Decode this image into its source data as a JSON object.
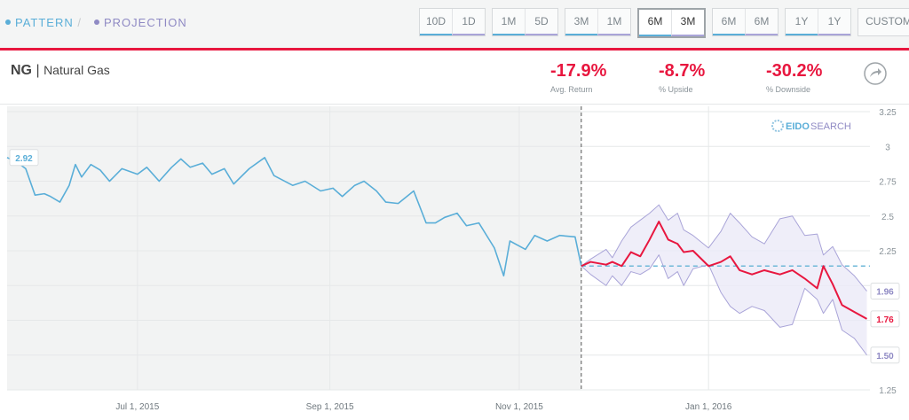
{
  "tabs": {
    "separator": "/"
  },
  "range_buttons": [
    [
      "10D",
      "1D"
    ],
    [
      "1M",
      "5D"
    ],
    [
      "3M",
      "1M"
    ],
    [
      "6M",
      "3M"
    ],
    [
      "6M",
      "6M"
    ],
    [
      "1Y",
      "1Y"
    ]
  ],
  "custom_button": "CUSTOM",
  "symbol": "NG",
  "symbol_separator": "|",
  "name": "Natural Gas",
  "stats": [
    {
      "value": "-17.9%",
      "label": "Avg. Return"
    },
    {
      "value": "-8.7%",
      "label": "% Upside"
    },
    {
      "value": "-30.2%",
      "label": "% Downside"
    }
  ],
  "logo": {
    "first": "EIDO",
    "second": "SEARCH"
  },
  "chart_data": {
    "type": "line",
    "xlim": [
      "2015-05-20",
      "2016-02-22"
    ],
    "xticks": [
      {
        "value": "2015-07-01",
        "label": "Jul 1, 2015"
      },
      {
        "value": "2015-09-01",
        "label": "Sep 1, 2015"
      },
      {
        "value": "2015-11-01",
        "label": "Nov 1, 2015"
      },
      {
        "value": "2016-01-01",
        "label": "Jan 1, 2016"
      }
    ],
    "ylim": [
      1.25,
      3.25
    ],
    "yticks": [
      1.25,
      1.5,
      1.75,
      2,
      2.25,
      2.5,
      2.75,
      3,
      3.25
    ],
    "grid": true,
    "series": [
      {
        "name": "PATTERN",
        "color": "#5aaed8",
        "x": [
          "2015-05-20",
          "2015-05-23",
          "2015-05-26",
          "2015-05-29",
          "2015-06-01",
          "2015-06-03",
          "2015-06-06",
          "2015-06-09",
          "2015-06-11",
          "2015-06-13",
          "2015-06-16",
          "2015-06-19",
          "2015-06-22",
          "2015-06-26",
          "2015-07-01",
          "2015-07-04",
          "2015-07-08",
          "2015-07-12",
          "2015-07-15",
          "2015-07-18",
          "2015-07-22",
          "2015-07-25",
          "2015-07-29",
          "2015-08-01",
          "2015-08-06",
          "2015-08-11",
          "2015-08-14",
          "2015-08-20",
          "2015-08-24",
          "2015-08-29",
          "2015-09-02",
          "2015-09-05",
          "2015-09-09",
          "2015-09-12",
          "2015-09-16",
          "2015-09-19",
          "2015-09-23",
          "2015-09-28",
          "2015-10-02",
          "2015-10-05",
          "2015-10-08",
          "2015-10-12",
          "2015-10-15",
          "2015-10-19",
          "2015-10-24",
          "2015-10-27",
          "2015-10-29",
          "2015-11-03",
          "2015-11-06",
          "2015-11-10",
          "2015-11-14",
          "2015-11-19",
          "2015-11-21"
        ],
        "values": [
          2.92,
          2.89,
          2.84,
          2.65,
          2.66,
          2.64,
          2.6,
          2.72,
          2.87,
          2.78,
          2.87,
          2.83,
          2.75,
          2.84,
          2.8,
          2.85,
          2.75,
          2.85,
          2.91,
          2.85,
          2.88,
          2.8,
          2.84,
          2.73,
          2.84,
          2.92,
          2.79,
          2.72,
          2.75,
          2.68,
          2.7,
          2.64,
          2.72,
          2.75,
          2.68,
          2.6,
          2.59,
          2.68,
          2.45,
          2.45,
          2.49,
          2.52,
          2.43,
          2.45,
          2.27,
          2.07,
          2.32,
          2.26,
          2.36,
          2.32,
          2.36,
          2.35,
          2.14
        ]
      },
      {
        "name": "PROJECTION",
        "color": "#e8173f",
        "x": [
          "2015-11-21",
          "2015-11-24",
          "2015-11-29",
          "2015-12-01",
          "2015-12-04",
          "2015-12-07",
          "2015-12-10",
          "2015-12-13",
          "2015-12-16",
          "2015-12-19",
          "2015-12-22",
          "2015-12-24",
          "2015-12-27",
          "2016-01-01",
          "2016-01-05",
          "2016-01-08",
          "2016-01-11",
          "2016-01-15",
          "2016-01-19",
          "2016-01-24",
          "2016-01-28",
          "2016-02-01",
          "2016-02-05",
          "2016-02-07",
          "2016-02-10",
          "2016-02-13",
          "2016-02-17",
          "2016-02-21"
        ],
        "values": [
          2.14,
          2.17,
          2.15,
          2.17,
          2.14,
          2.24,
          2.21,
          2.33,
          2.46,
          2.33,
          2.3,
          2.24,
          2.25,
          2.14,
          2.17,
          2.21,
          2.11,
          2.08,
          2.11,
          2.08,
          2.11,
          2.05,
          1.98,
          2.14,
          2.01,
          1.86,
          1.81,
          1.76
        ]
      },
      {
        "color": "#a9a4d8",
        "x": [
          "2015-11-21",
          "2015-11-24",
          "2015-11-29",
          "2015-12-01",
          "2015-12-04",
          "2015-12-07",
          "2015-12-10",
          "2015-12-13",
          "2015-12-16",
          "2015-12-19",
          "2015-12-22",
          "2015-12-24",
          "2015-12-27",
          "2016-01-01",
          "2016-01-05",
          "2016-01-08",
          "2016-01-11",
          "2016-01-15",
          "2016-01-19",
          "2016-01-24",
          "2016-01-28",
          "2016-02-01",
          "2016-02-05",
          "2016-02-07",
          "2016-02-10",
          "2016-02-13",
          "2016-02-17",
          "2016-02-21"
        ],
        "values": [
          2.14,
          2.19,
          2.26,
          2.2,
          2.32,
          2.42,
          2.47,
          2.52,
          2.58,
          2.47,
          2.52,
          2.4,
          2.36,
          2.27,
          2.39,
          2.52,
          2.45,
          2.35,
          2.3,
          2.48,
          2.5,
          2.36,
          2.37,
          2.22,
          2.28,
          2.15,
          2.07,
          1.96
        ]
      },
      {
        "color": "#a9a4d8",
        "x": [
          "2015-11-21",
          "2015-11-24",
          "2015-11-29",
          "2015-12-01",
          "2015-12-04",
          "2015-12-07",
          "2015-12-10",
          "2015-12-13",
          "2015-12-16",
          "2015-12-19",
          "2015-12-22",
          "2015-12-24",
          "2015-12-27",
          "2016-01-01",
          "2016-01-05",
          "2016-01-08",
          "2016-01-11",
          "2016-01-15",
          "2016-01-19",
          "2016-01-24",
          "2016-01-28",
          "2016-02-01",
          "2016-02-05",
          "2016-02-07",
          "2016-02-10",
          "2016-02-13",
          "2016-02-17",
          "2016-02-21"
        ],
        "values": [
          2.14,
          2.08,
          2.0,
          2.07,
          2.0,
          2.1,
          2.08,
          2.12,
          2.22,
          2.05,
          2.1,
          2.0,
          2.12,
          2.15,
          1.95,
          1.85,
          1.8,
          1.85,
          1.82,
          1.7,
          1.72,
          1.98,
          1.9,
          1.8,
          1.9,
          1.68,
          1.62,
          1.5
        ],
        "value_labels": [
          null,
          null,
          null,
          null,
          null,
          null,
          null,
          null,
          null,
          null,
          null,
          null,
          null,
          null,
          null,
          null,
          null,
          null,
          null,
          null,
          null,
          null,
          null,
          null,
          null,
          null,
          null,
          "1.50"
        ]
      }
    ]
  }
}
